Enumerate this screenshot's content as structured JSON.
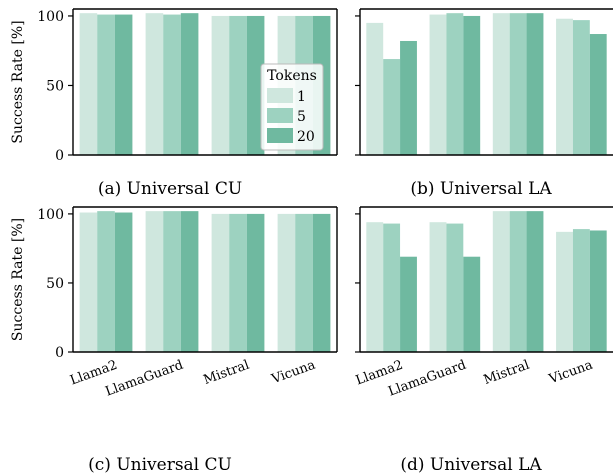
{
  "chart_data": [
    {
      "type": "bar",
      "caption": "(a) Universal CU",
      "ylabel": "Success Rate [%]",
      "ylim": [
        0,
        105
      ],
      "yticks": [
        0,
        50,
        100
      ],
      "categories": [
        "Llama2",
        "LlamaGuard",
        "Mistral",
        "Vicuna"
      ],
      "show_xtick_labels": false,
      "legend": {
        "title": "Tokens",
        "placement": "lower-right"
      },
      "series": [
        {
          "name": "1",
          "values": [
            102,
            102,
            100,
            100
          ]
        },
        {
          "name": "5",
          "values": [
            101,
            101,
            100,
            100
          ]
        },
        {
          "name": "20",
          "values": [
            101,
            102,
            100,
            100
          ]
        }
      ]
    },
    {
      "type": "bar",
      "caption": "(b) Universal LA",
      "ylabel": "",
      "ylim": [
        0,
        105
      ],
      "categories": [
        "Llama2",
        "LlamaGuard",
        "Mistral",
        "Vicuna"
      ],
      "show_xtick_labels": false,
      "series": [
        {
          "name": "1",
          "values": [
            95,
            101,
            102,
            98
          ]
        },
        {
          "name": "5",
          "values": [
            69,
            102,
            102,
            97
          ]
        },
        {
          "name": "20",
          "values": [
            82,
            100,
            102,
            87
          ]
        }
      ]
    },
    {
      "type": "bar",
      "caption": "(c) Universal CU",
      "ylabel": "Success Rate [%]",
      "ylim": [
        0,
        105
      ],
      "yticks": [
        0,
        50,
        100
      ],
      "categories": [
        "Llama2",
        "LlamaGuard",
        "Mistral",
        "Vicuna"
      ],
      "show_xtick_labels": true,
      "series": [
        {
          "name": "1",
          "values": [
            101,
            102,
            100,
            100
          ]
        },
        {
          "name": "5",
          "values": [
            102,
            102,
            100,
            100
          ]
        },
        {
          "name": "20",
          "values": [
            101,
            102,
            100,
            100
          ]
        }
      ]
    },
    {
      "type": "bar",
      "caption": "(d) Universal LA",
      "ylabel": "",
      "ylim": [
        0,
        105
      ],
      "categories": [
        "Llama2",
        "LlamaGuard",
        "Mistral",
        "Vicuna"
      ],
      "show_xtick_labels": true,
      "series": [
        {
          "name": "1",
          "values": [
            94,
            94,
            102,
            87
          ]
        },
        {
          "name": "5",
          "values": [
            93,
            93,
            102,
            89
          ]
        },
        {
          "name": "20",
          "values": [
            69,
            69,
            102,
            88
          ]
        }
      ]
    }
  ],
  "colors": {
    "series": [
      "#cfe7de",
      "#9dd2c0",
      "#6fb9a0"
    ]
  }
}
